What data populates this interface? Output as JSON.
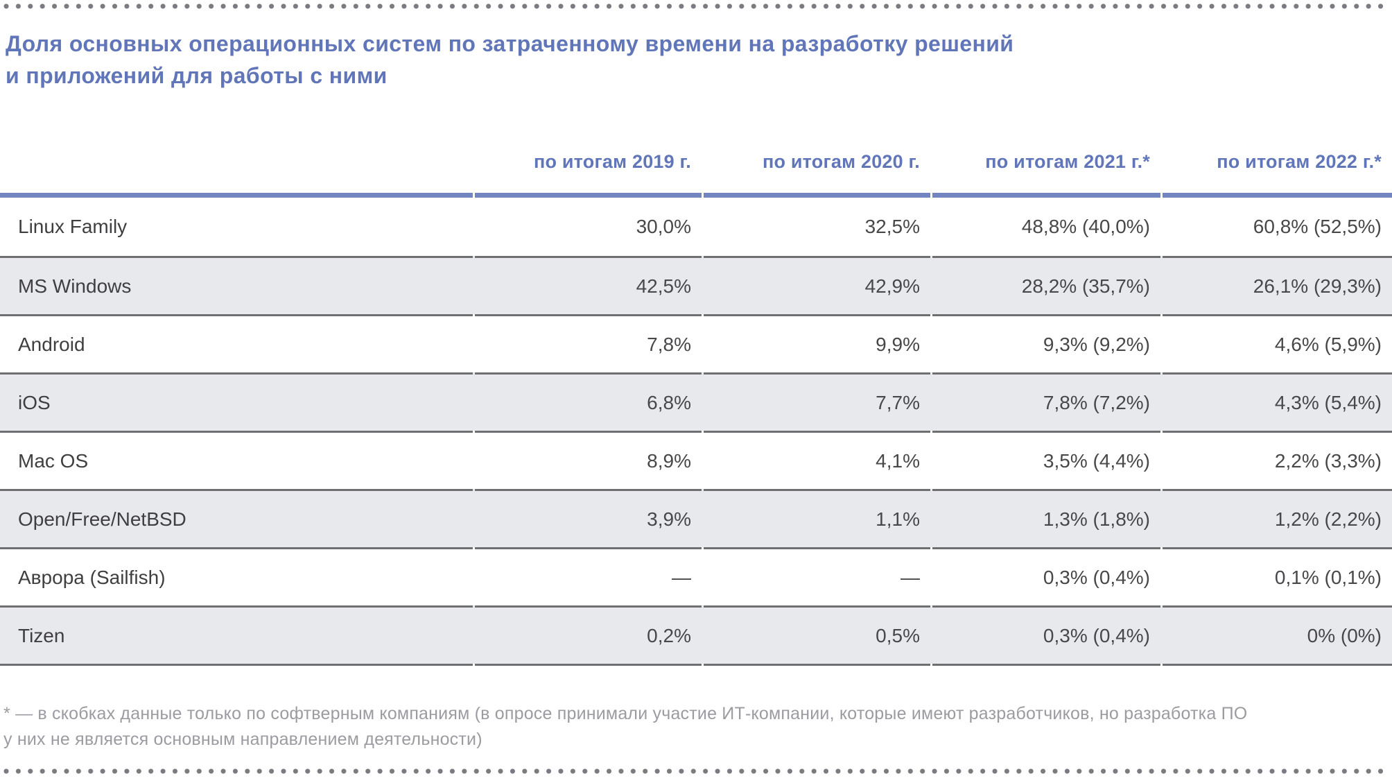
{
  "page": {
    "title_line1": "Доля основных операционных систем по затраченному времени на разработку решений",
    "title_line2": "и приложений для работы с ними",
    "footnote_line1": "* — в скобках данные только по софтверным компаниям (в опросе принимали участие ИТ-компании, которые имеют разработчиков, но разработка ПО",
    "footnote_line2": "у них не является основным направлением деятельности)"
  },
  "chart_data": {
    "type": "table",
    "title": "Доля основных операционных систем по затраченному времени на разработку решений и приложений для работы с ними",
    "columns": [
      "",
      "по итогам 2019 г.",
      "по итогам 2020 г.",
      "по итогам 2021 г.*",
      "по итогам 2022 г.*"
    ],
    "rows": [
      {
        "label": "Linux Family",
        "values": [
          "30,0%",
          "32,5%",
          "48,8% (40,0%)",
          "60,8% (52,5%)"
        ]
      },
      {
        "label": "MS Windows",
        "values": [
          "42,5%",
          "42,9%",
          "28,2% (35,7%)",
          "26,1% (29,3%)"
        ]
      },
      {
        "label": "Android",
        "values": [
          "7,8%",
          "9,9%",
          "9,3% (9,2%)",
          "4,6% (5,9%)"
        ]
      },
      {
        "label": "iOS",
        "values": [
          "6,8%",
          "7,7%",
          "7,8% (7,2%)",
          "4,3% (5,4%)"
        ]
      },
      {
        "label": "Mac OS",
        "values": [
          "8,9%",
          "4,1%",
          "3,5% (4,4%)",
          "2,2% (3,3%)"
        ]
      },
      {
        "label": "Open/Free/NetBSD",
        "values": [
          "3,9%",
          "1,1%",
          "1,3% (1,8%)",
          "1,2% (2,2%)"
        ]
      },
      {
        "label": "Аврора (Sailfish)",
        "values": [
          "—",
          "—",
          "0,3% (0,4%)",
          "0,1% (0,1%)"
        ]
      },
      {
        "label": "Tizen",
        "values": [
          "0,2%",
          "0,5%",
          "0,3% (0,4%)",
          "0% (0%)"
        ]
      }
    ],
    "footnote": "* — в скобках данные только по софтверным компаниям (в опросе принимали участие ИТ-компании, которые имеют разработчиков, но разработка ПО у них не является основным направлением деятельности)",
    "legend": "none",
    "grid": "horizontal-row-separators"
  },
  "colors": {
    "accent_blue": "#6076b8",
    "rule_blue": "#7285c1",
    "separator_gray": "#6f6f72",
    "alt_row_bg": "#e8e9ed",
    "body_text": "#48484a",
    "footnote_gray": "#9b9ba1",
    "dot_gray": "#7a7a81"
  }
}
